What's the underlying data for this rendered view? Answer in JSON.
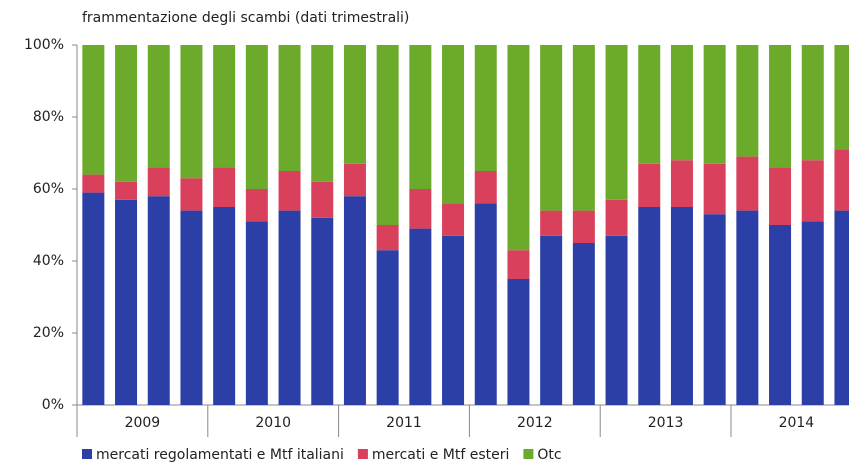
{
  "chart_data": {
    "type": "stacked_bar",
    "title": "frammentazione degli scambi (dati trimestrali)",
    "categories": [
      null,
      null,
      null,
      null,
      null,
      null,
      null,
      null,
      null,
      null,
      null,
      null,
      null,
      null,
      null,
      null,
      null,
      null,
      null,
      null,
      null,
      null,
      null,
      null
    ],
    "year_groups": [
      "2009",
      "2010",
      "2011",
      "2012",
      "2013",
      "2014"
    ],
    "series": [
      {
        "name": "mercati regolamentati e Mtf italiani",
        "color": "#2b3fa6",
        "values": [
          59,
          57,
          58,
          54,
          55,
          51,
          54,
          52,
          58,
          43,
          49,
          47,
          56,
          35,
          47,
          45,
          47,
          55,
          55,
          53,
          54,
          50,
          51,
          54
        ]
      },
      {
        "name": "mercati e Mtf esteri",
        "color": "#d8405c",
        "values": [
          5,
          5,
          8,
          9,
          11,
          9,
          11,
          10,
          9,
          7,
          11,
          9,
          9,
          8,
          7,
          9,
          10,
          12,
          13,
          14,
          15,
          16,
          17,
          17
        ]
      },
      {
        "name": "Otc",
        "color": "#6caa2c",
        "values": [
          36,
          38,
          34,
          37,
          34,
          40,
          35,
          38,
          33,
          50,
          40,
          44,
          35,
          57,
          46,
          46,
          43,
          33,
          32,
          33,
          31,
          34,
          32,
          29
        ]
      }
    ],
    "ylim": [
      0,
      100
    ],
    "yticks": [
      {
        "value": 0,
        "label": "0%"
      },
      {
        "value": 20,
        "label": "20%"
      },
      {
        "value": 40,
        "label": "40%"
      },
      {
        "value": 60,
        "label": "60%"
      },
      {
        "value": 80,
        "label": "80%"
      },
      {
        "value": 100,
        "label": "100%"
      }
    ]
  }
}
